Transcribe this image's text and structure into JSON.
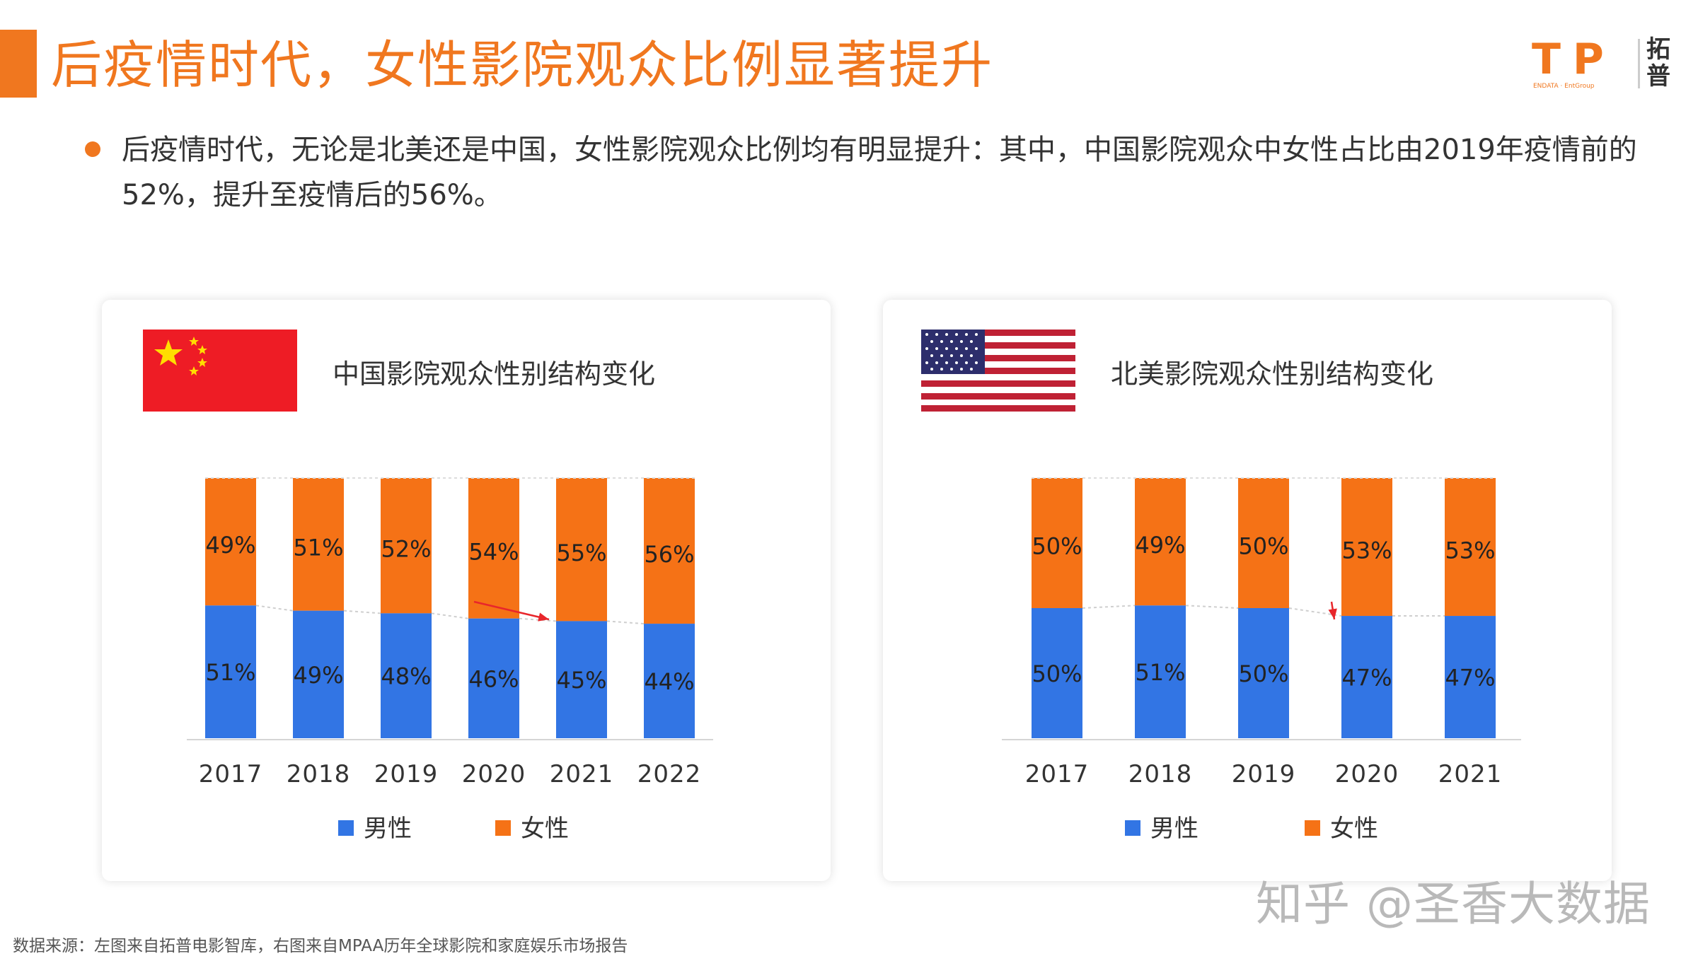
{
  "header": {
    "title": "后疫情时代，女性影院观众比例显著提升",
    "logo_text": "T P",
    "logo_cn": "拓普",
    "logo_sub": "ENDATA · EntGroup"
  },
  "bullet": {
    "text": "后疫情时代，无论是北美还是中国，女性影院观众比例均有明显提升：其中，中国影院观众中女性占比由2019年疫情前的52%，提升至疫情后的56%。"
  },
  "colors": {
    "accent": "#f0771f",
    "male": "#3275e4",
    "female": "#f57216"
  },
  "legend": {
    "male": "男性",
    "female": "女性"
  },
  "chart_data": [
    {
      "type": "bar",
      "stacked": true,
      "title": "中国影院观众性别结构变化",
      "flag": "china-flag",
      "categories": [
        "2017",
        "2018",
        "2019",
        "2020",
        "2021",
        "2022"
      ],
      "series": [
        {
          "name": "男性",
          "values": [
            51,
            49,
            48,
            46,
            45,
            44
          ],
          "labels": [
            "51%",
            "49%",
            "48%",
            "46%",
            "45%",
            "44%"
          ]
        },
        {
          "name": "女性",
          "values": [
            49,
            51,
            52,
            54,
            55,
            56
          ],
          "labels": [
            "49%",
            "51%",
            "52%",
            "54%",
            "55%",
            "56%"
          ]
        }
      ],
      "ylim": [
        0,
        100
      ],
      "grid": false,
      "legend_position": "bottom",
      "annotation": "trend arrow from 2020 to 2022"
    },
    {
      "type": "bar",
      "stacked": true,
      "title": "北美影院观众性别结构变化",
      "flag": "usa-flag",
      "categories": [
        "2017",
        "2018",
        "2019",
        "2020",
        "2021"
      ],
      "series": [
        {
          "name": "男性",
          "values": [
            50,
            51,
            50,
            47,
            47
          ],
          "labels": [
            "50%",
            "51%",
            "50%",
            "47%",
            "47%"
          ]
        },
        {
          "name": "女性",
          "values": [
            50,
            49,
            50,
            53,
            53
          ],
          "labels": [
            "50%",
            "49%",
            "50%",
            "53%",
            "53%"
          ]
        }
      ],
      "ylim": [
        0,
        100
      ],
      "grid": false,
      "legend_position": "bottom",
      "annotation": "trend arrow from 2019 to 2020"
    }
  ],
  "watermark": "知乎 @圣香大数据",
  "source": "数据来源：左图来自拓普电影智库，右图来自MPAA历年全球影院和家庭娱乐市场报告"
}
